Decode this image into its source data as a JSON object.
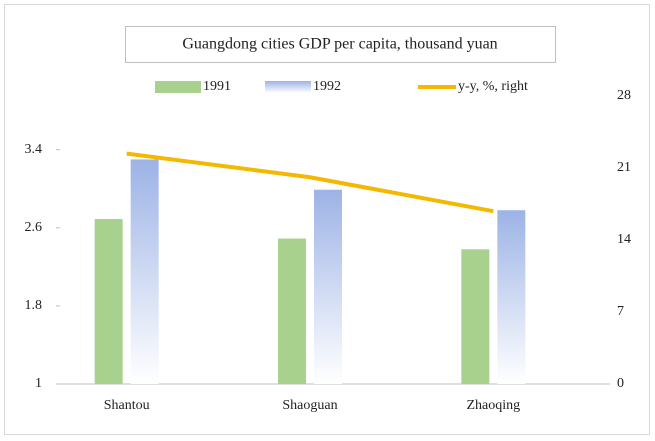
{
  "chart_data": {
    "type": "bar",
    "title": "Guangdong cities GDP per capita, thousand yuan",
    "categories": [
      "Shantou",
      "Shaoguan",
      "Zhaoqing"
    ],
    "series": [
      {
        "name": "1991",
        "color": "#a9d18e",
        "values": [
          2.69,
          2.49,
          2.38
        ]
      },
      {
        "name": "1992",
        "color": "#9db3e6",
        "values": [
          3.3,
          2.99,
          2.78
        ]
      },
      {
        "name": "y-y, %, right",
        "color": "#f5b800",
        "type": "line",
        "axis": "y2",
        "values": [
          22.4,
          20.1,
          16.8
        ]
      }
    ],
    "ylim": [
      1,
      3.95
    ],
    "yticks": [
      1,
      1.8,
      2.6,
      3.4
    ],
    "y2lim": [
      0,
      28
    ],
    "y2ticks": [
      0,
      7,
      14,
      21,
      28
    ]
  }
}
